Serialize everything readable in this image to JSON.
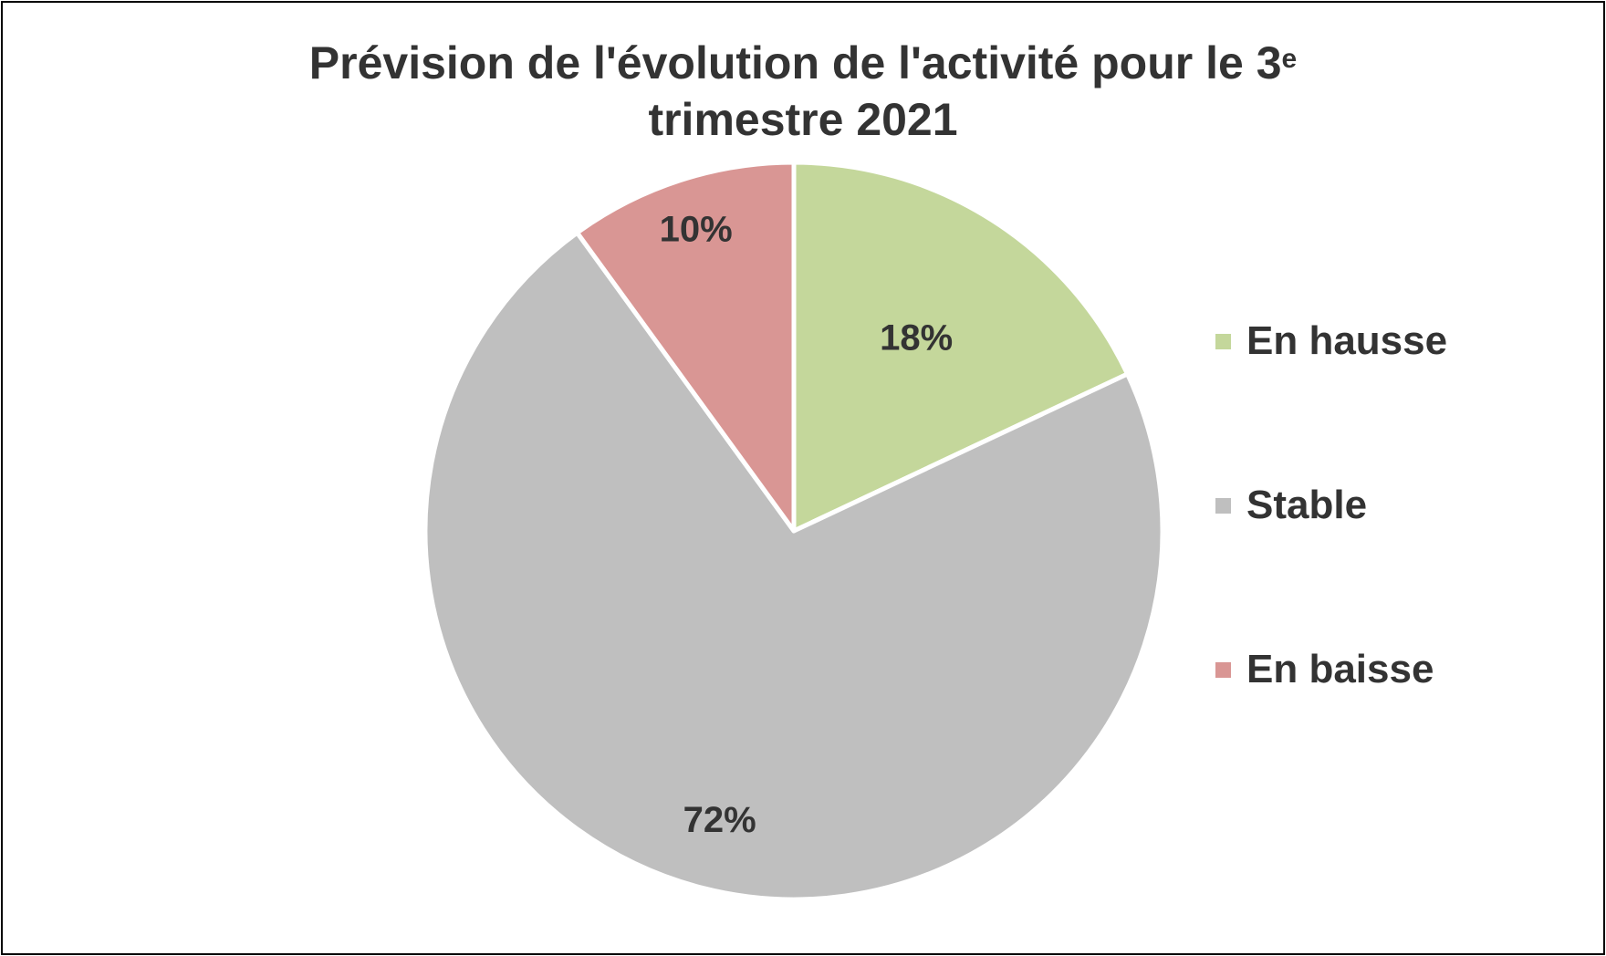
{
  "chart_data": {
    "type": "pie",
    "title": "Prévision de l'évolution de l'activité pour le 3",
    "title_superscript": "e",
    "title_line2": "trimestre 2021",
    "categories": [
      "En hausse",
      "Stable",
      "En baisse"
    ],
    "values": [
      18,
      72,
      10
    ],
    "data_labels": [
      "18%",
      "72%",
      "10%"
    ],
    "colors": [
      "#C4D79B",
      "#BFBFBF",
      "#D99694"
    ],
    "legend_position": "right",
    "start_angle": "12 o'clock",
    "direction": "clockwise"
  },
  "legend": {
    "items": [
      {
        "label": "En hausse",
        "color": "#C4D79B"
      },
      {
        "label": "Stable",
        "color": "#BFBFBF"
      },
      {
        "label": "En baisse",
        "color": "#D99694"
      }
    ]
  }
}
